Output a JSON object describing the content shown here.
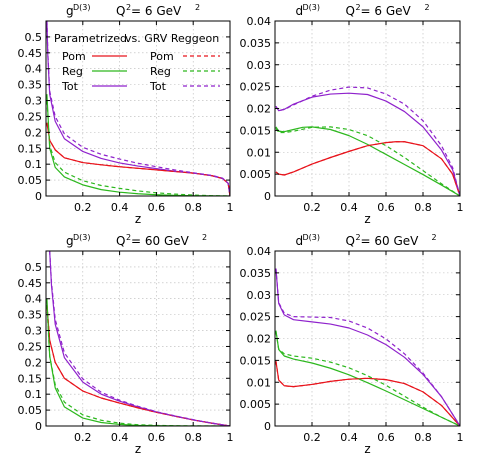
{
  "legend": {
    "header_left": "Parametrized",
    "header_right": "vs. GRV Reggeon",
    "labels": [
      "Pom",
      "Reg",
      "Tot"
    ]
  },
  "colors": {
    "Pom": "#e8141c",
    "Reg": "#2db81e",
    "Tot": "#8f22cc"
  },
  "chart_data": [
    {
      "type": "line",
      "title": {
        "func": "g",
        "sup": "D(3)",
        "q2": "Q",
        "q2sup": "2",
        "q2val": " = 6 GeV",
        "q2valsup": "2"
      },
      "xlabel": "z",
      "ylabel": "",
      "xlim": [
        0,
        1
      ],
      "ylim": [
        0,
        0.55
      ],
      "xticks": [
        0.2,
        0.4,
        0.6,
        0.8,
        1
      ],
      "xtick_labels": [
        "0.2",
        "0.4",
        "0.6",
        "0.8",
        "1"
      ],
      "yticks": [
        0,
        0.05,
        0.1,
        0.15,
        0.2,
        0.25,
        0.3,
        0.35,
        0.4,
        0.45,
        0.5
      ],
      "ytick_labels": [
        "0",
        "0.05",
        "0.1",
        "0.15",
        "0.2",
        "0.25",
        "0.3",
        "0.35",
        "0.4",
        "0.45",
        "0.5"
      ],
      "grid": true,
      "legend_position": "top-left",
      "series": [
        {
          "name": "Pom",
          "variant": "Parametrized",
          "x": [
            0.005,
            0.02,
            0.05,
            0.1,
            0.2,
            0.3,
            0.4,
            0.5,
            0.6,
            0.7,
            0.8,
            0.9,
            0.96,
            0.99,
            1.0
          ],
          "y": [
            0.23,
            0.175,
            0.145,
            0.12,
            0.105,
            0.098,
            0.092,
            0.087,
            0.082,
            0.077,
            0.072,
            0.064,
            0.055,
            0.04,
            0.0
          ]
        },
        {
          "name": "Reg",
          "variant": "Parametrized",
          "x": [
            0.005,
            0.02,
            0.05,
            0.1,
            0.2,
            0.3,
            0.4,
            0.5,
            0.6,
            0.7,
            0.8,
            0.9,
            1.0
          ],
          "y": [
            0.32,
            0.15,
            0.09,
            0.06,
            0.035,
            0.02,
            0.012,
            0.007,
            0.004,
            0.002,
            0.001,
            0.0003,
            0.0
          ]
        },
        {
          "name": "Tot",
          "variant": "Parametrized",
          "x": [
            0.005,
            0.01,
            0.02,
            0.05,
            0.1,
            0.2,
            0.3,
            0.4,
            0.5,
            0.6,
            0.7,
            0.8,
            0.9,
            0.96,
            0.99,
            1.0
          ],
          "y": [
            0.55,
            0.44,
            0.32,
            0.235,
            0.18,
            0.14,
            0.118,
            0.104,
            0.094,
            0.086,
            0.078,
            0.072,
            0.064,
            0.055,
            0.04,
            0.0
          ]
        },
        {
          "name": "Pom",
          "variant": "vs. GRV Reggeon",
          "x": [
            0.005,
            0.02,
            0.05,
            0.1,
            0.2,
            0.3,
            0.4,
            0.5,
            0.6,
            0.7,
            0.8,
            0.9,
            0.96,
            0.99,
            1.0
          ],
          "y": [
            0.23,
            0.175,
            0.145,
            0.12,
            0.105,
            0.098,
            0.092,
            0.087,
            0.082,
            0.077,
            0.072,
            0.064,
            0.055,
            0.04,
            0.0
          ]
        },
        {
          "name": "Reg",
          "variant": "vs. GRV Reggeon",
          "x": [
            0.005,
            0.02,
            0.05,
            0.1,
            0.2,
            0.3,
            0.4,
            0.5,
            0.6,
            0.7,
            0.8,
            0.9,
            1.0
          ],
          "y": [
            0.3,
            0.16,
            0.105,
            0.075,
            0.048,
            0.033,
            0.024,
            0.016,
            0.01,
            0.006,
            0.003,
            0.001,
            0.0
          ]
        },
        {
          "name": "Tot",
          "variant": "vs. GRV Reggeon",
          "x": [
            0.005,
            0.01,
            0.02,
            0.05,
            0.1,
            0.2,
            0.3,
            0.4,
            0.5,
            0.6,
            0.7,
            0.8,
            0.9,
            0.96,
            0.99,
            1.0
          ],
          "y": [
            0.55,
            0.45,
            0.33,
            0.25,
            0.195,
            0.153,
            0.131,
            0.116,
            0.103,
            0.092,
            0.082,
            0.073,
            0.065,
            0.056,
            0.04,
            0.0
          ]
        }
      ]
    },
    {
      "type": "line",
      "title": {
        "func": "d",
        "sup": "D(3)",
        "q2": "Q",
        "q2sup": "2",
        "q2val": " = 6 GeV",
        "q2valsup": "2"
      },
      "xlabel": "z",
      "ylabel": "",
      "xlim": [
        0,
        1
      ],
      "ylim": [
        0,
        0.04
      ],
      "xticks": [
        0.2,
        0.4,
        0.6,
        0.8,
        1
      ],
      "xtick_labels": [
        "0.2",
        "0.4",
        "0.6",
        "0.8",
        "1"
      ],
      "yticks": [
        0,
        0.005,
        0.01,
        0.015,
        0.02,
        0.025,
        0.03,
        0.035,
        0.04
      ],
      "ytick_labels": [
        "0",
        "0.005",
        "0.01",
        "0.015",
        "0.02",
        "0.025",
        "0.03",
        "0.035",
        "0.04"
      ],
      "grid": true,
      "series": [
        {
          "name": "Pom",
          "variant": "Parametrized",
          "x": [
            0.005,
            0.02,
            0.05,
            0.1,
            0.2,
            0.3,
            0.4,
            0.5,
            0.6,
            0.65,
            0.7,
            0.8,
            0.9,
            0.96,
            1.0
          ],
          "y": [
            0.0055,
            0.005,
            0.0048,
            0.0055,
            0.0073,
            0.0088,
            0.0102,
            0.0115,
            0.0122,
            0.0124,
            0.0124,
            0.0115,
            0.0085,
            0.005,
            0.0
          ]
        },
        {
          "name": "Reg",
          "variant": "Parametrized",
          "x": [
            0.005,
            0.02,
            0.05,
            0.1,
            0.15,
            0.2,
            0.3,
            0.4,
            0.5,
            0.6,
            0.7,
            0.8,
            0.9,
            1.0
          ],
          "y": [
            0.0158,
            0.0148,
            0.0147,
            0.0152,
            0.0157,
            0.0158,
            0.0152,
            0.0138,
            0.0118,
            0.0095,
            0.0072,
            0.0049,
            0.0025,
            0.0
          ]
        },
        {
          "name": "Tot",
          "variant": "Parametrized",
          "x": [
            0.005,
            0.02,
            0.05,
            0.1,
            0.2,
            0.3,
            0.4,
            0.5,
            0.6,
            0.7,
            0.8,
            0.9,
            0.96,
            1.0
          ],
          "y": [
            0.0205,
            0.0195,
            0.0198,
            0.021,
            0.0226,
            0.0233,
            0.0235,
            0.0232,
            0.0217,
            0.0193,
            0.0158,
            0.0105,
            0.006,
            0.0
          ]
        },
        {
          "name": "Pom",
          "variant": "vs. GRV Reggeon",
          "x": [
            0.005,
            0.02,
            0.05,
            0.1,
            0.2,
            0.3,
            0.4,
            0.5,
            0.6,
            0.65,
            0.7,
            0.8,
            0.9,
            0.96,
            1.0
          ],
          "y": [
            0.0055,
            0.005,
            0.0048,
            0.0055,
            0.0073,
            0.0088,
            0.0102,
            0.0115,
            0.0122,
            0.0124,
            0.0124,
            0.0115,
            0.0085,
            0.005,
            0.0
          ]
        },
        {
          "name": "Reg",
          "variant": "vs. GRV Reggeon",
          "x": [
            0.005,
            0.02,
            0.05,
            0.1,
            0.2,
            0.3,
            0.4,
            0.5,
            0.6,
            0.7,
            0.8,
            0.9,
            1.0
          ],
          "y": [
            0.0155,
            0.0145,
            0.0145,
            0.0148,
            0.0157,
            0.0158,
            0.0152,
            0.0138,
            0.0115,
            0.0088,
            0.0058,
            0.0028,
            0.0
          ]
        },
        {
          "name": "Tot",
          "variant": "vs. GRV Reggeon",
          "x": [
            0.005,
            0.02,
            0.05,
            0.1,
            0.2,
            0.3,
            0.4,
            0.5,
            0.6,
            0.7,
            0.8,
            0.9,
            0.96,
            1.0
          ],
          "y": [
            0.0205,
            0.0195,
            0.0198,
            0.0208,
            0.0228,
            0.0242,
            0.0249,
            0.0247,
            0.0233,
            0.021,
            0.0172,
            0.0115,
            0.0065,
            0.0
          ]
        }
      ]
    },
    {
      "type": "line",
      "title": {
        "func": "g",
        "sup": "D(3)",
        "q2": "Q",
        "q2sup": "2",
        "q2val": " = 60 GeV",
        "q2valsup": "2"
      },
      "xlabel": "z",
      "ylabel": "",
      "xlim": [
        0,
        1
      ],
      "ylim": [
        0,
        0.55
      ],
      "xticks": [
        0.2,
        0.4,
        0.6,
        0.8,
        1
      ],
      "xtick_labels": [
        "0.2",
        "0.4",
        "0.6",
        "0.8",
        "1"
      ],
      "yticks": [
        0,
        0.05,
        0.1,
        0.15,
        0.2,
        0.25,
        0.3,
        0.35,
        0.4,
        0.45,
        0.5
      ],
      "ytick_labels": [
        "0",
        "0.05",
        "0.1",
        "0.15",
        "0.2",
        "0.25",
        "0.3",
        "0.35",
        "0.4",
        "0.45",
        "0.5"
      ],
      "grid": true,
      "series": [
        {
          "name": "Pom",
          "variant": "Parametrized",
          "x": [
            0.005,
            0.02,
            0.05,
            0.1,
            0.2,
            0.3,
            0.4,
            0.5,
            0.6,
            0.7,
            0.8,
            0.9,
            1.0
          ],
          "y": [
            0.38,
            0.27,
            0.2,
            0.15,
            0.11,
            0.088,
            0.072,
            0.057,
            0.043,
            0.031,
            0.019,
            0.009,
            0.0
          ]
        },
        {
          "name": "Reg",
          "variant": "Parametrized",
          "x": [
            0.005,
            0.02,
            0.05,
            0.1,
            0.2,
            0.3,
            0.4,
            0.5,
            0.6,
            0.7,
            0.8,
            1.0
          ],
          "y": [
            0.4,
            0.22,
            0.12,
            0.06,
            0.025,
            0.011,
            0.005,
            0.002,
            0.001,
            0.0004,
            0.0001,
            0.0
          ]
        },
        {
          "name": "Tot",
          "variant": "Parametrized",
          "x": [
            0.02,
            0.03,
            0.05,
            0.1,
            0.2,
            0.3,
            0.4,
            0.5,
            0.6,
            0.7,
            0.8,
            0.9,
            1.0
          ],
          "y": [
            0.55,
            0.44,
            0.32,
            0.215,
            0.138,
            0.1,
            0.078,
            0.06,
            0.044,
            0.031,
            0.019,
            0.009,
            0.0
          ]
        },
        {
          "name": "Pom",
          "variant": "vs. GRV Reggeon",
          "x": [
            0.005,
            0.02,
            0.05,
            0.1,
            0.2,
            0.3,
            0.4,
            0.5,
            0.6,
            0.7,
            0.8,
            0.9,
            1.0
          ],
          "y": [
            0.38,
            0.27,
            0.2,
            0.15,
            0.11,
            0.088,
            0.072,
            0.057,
            0.043,
            0.031,
            0.019,
            0.009,
            0.0
          ]
        },
        {
          "name": "Reg",
          "variant": "vs. GRV Reggeon",
          "x": [
            0.005,
            0.02,
            0.05,
            0.1,
            0.2,
            0.3,
            0.4,
            0.5,
            0.6,
            0.7,
            0.8,
            1.0
          ],
          "y": [
            0.38,
            0.22,
            0.13,
            0.075,
            0.035,
            0.018,
            0.009,
            0.004,
            0.0018,
            0.0008,
            0.0003,
            0.0
          ]
        },
        {
          "name": "Tot",
          "variant": "vs. GRV Reggeon",
          "x": [
            0.02,
            0.03,
            0.05,
            0.1,
            0.2,
            0.3,
            0.4,
            0.5,
            0.6,
            0.7,
            0.8,
            0.9,
            1.0
          ],
          "y": [
            0.55,
            0.45,
            0.335,
            0.23,
            0.148,
            0.106,
            0.081,
            0.062,
            0.045,
            0.032,
            0.02,
            0.009,
            0.0
          ]
        }
      ]
    },
    {
      "type": "line",
      "title": {
        "func": "d",
        "sup": "D(3)",
        "q2": "Q",
        "q2sup": "2",
        "q2val": " = 60 GeV",
        "q2valsup": "2"
      },
      "xlabel": "z",
      "ylabel": "",
      "xlim": [
        0,
        1
      ],
      "ylim": [
        0,
        0.04
      ],
      "xticks": [
        0.2,
        0.4,
        0.6,
        0.8,
        1
      ],
      "xtick_labels": [
        "0.2",
        "0.4",
        "0.6",
        "0.8",
        "1"
      ],
      "yticks": [
        0,
        0.005,
        0.01,
        0.015,
        0.02,
        0.025,
        0.03,
        0.035,
        0.04
      ],
      "ytick_labels": [
        "0",
        "0.005",
        "0.01",
        "0.015",
        "0.02",
        "0.025",
        "0.03",
        "0.035",
        "0.04"
      ],
      "grid": true,
      "series": [
        {
          "name": "Pom",
          "variant": "Parametrized",
          "x": [
            0.005,
            0.02,
            0.05,
            0.1,
            0.2,
            0.3,
            0.4,
            0.5,
            0.6,
            0.7,
            0.8,
            0.9,
            1.0
          ],
          "y": [
            0.0148,
            0.0105,
            0.0092,
            0.009,
            0.0095,
            0.0102,
            0.0107,
            0.0109,
            0.0106,
            0.0097,
            0.0078,
            0.0047,
            0.0
          ]
        },
        {
          "name": "Reg",
          "variant": "Parametrized",
          "x": [
            0.005,
            0.02,
            0.05,
            0.1,
            0.2,
            0.3,
            0.4,
            0.5,
            0.6,
            0.7,
            0.8,
            0.9,
            1.0
          ],
          "y": [
            0.0218,
            0.0175,
            0.016,
            0.0153,
            0.0144,
            0.0132,
            0.0117,
            0.0099,
            0.008,
            0.006,
            0.004,
            0.002,
            0.0
          ]
        },
        {
          "name": "Tot",
          "variant": "Parametrized",
          "x": [
            0.005,
            0.02,
            0.05,
            0.1,
            0.2,
            0.3,
            0.4,
            0.5,
            0.6,
            0.7,
            0.8,
            0.9,
            1.0
          ],
          "y": [
            0.036,
            0.028,
            0.0254,
            0.0243,
            0.0238,
            0.0233,
            0.0224,
            0.0208,
            0.0186,
            0.0157,
            0.0118,
            0.0067,
            0.0
          ]
        },
        {
          "name": "Pom",
          "variant": "vs. GRV Reggeon",
          "x": [
            0.005,
            0.02,
            0.05,
            0.1,
            0.2,
            0.3,
            0.4,
            0.5,
            0.6,
            0.7,
            0.8,
            0.9,
            1.0
          ],
          "y": [
            0.0148,
            0.0105,
            0.0092,
            0.009,
            0.0095,
            0.0102,
            0.0107,
            0.0109,
            0.0106,
            0.0097,
            0.0078,
            0.0047,
            0.0
          ]
        },
        {
          "name": "Reg",
          "variant": "vs. GRV Reggeon",
          "x": [
            0.005,
            0.02,
            0.05,
            0.1,
            0.2,
            0.3,
            0.4,
            0.5,
            0.6,
            0.7,
            0.8,
            0.9,
            1.0
          ],
          "y": [
            0.0215,
            0.0176,
            0.0165,
            0.016,
            0.0155,
            0.0146,
            0.0133,
            0.0115,
            0.0093,
            0.0068,
            0.0043,
            0.002,
            0.0
          ]
        },
        {
          "name": "Tot",
          "variant": "vs. GRV Reggeon",
          "x": [
            0.005,
            0.02,
            0.05,
            0.1,
            0.2,
            0.3,
            0.4,
            0.5,
            0.6,
            0.7,
            0.8,
            0.9,
            1.0
          ],
          "y": [
            0.036,
            0.0282,
            0.0258,
            0.025,
            0.0249,
            0.0248,
            0.024,
            0.0224,
            0.0199,
            0.0165,
            0.0121,
            0.0067,
            0.0
          ]
        }
      ]
    }
  ]
}
